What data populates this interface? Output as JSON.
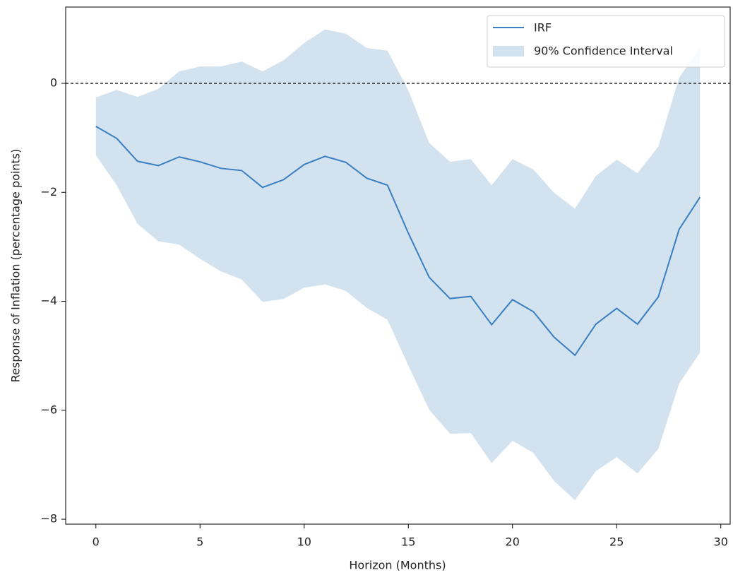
{
  "chart_data": {
    "type": "line",
    "xlabel": "Horizon (Months)",
    "ylabel": "Response of Inflation (percentage points)",
    "x": [
      0,
      1,
      2,
      3,
      4,
      5,
      6,
      7,
      8,
      9,
      10,
      11,
      12,
      13,
      14,
      15,
      16,
      17,
      18,
      19,
      20,
      21,
      22,
      23,
      24,
      25,
      26,
      27,
      28,
      29
    ],
    "series": [
      {
        "name": "IRF",
        "color": "#3a7fc1",
        "values": [
          -0.79,
          -1.01,
          -1.43,
          -1.51,
          -1.35,
          -1.44,
          -1.56,
          -1.6,
          -1.91,
          -1.77,
          -1.49,
          -1.34,
          -1.45,
          -1.74,
          -1.87,
          -2.75,
          -3.56,
          -3.95,
          -3.91,
          -4.43,
          -3.97,
          -4.19,
          -4.66,
          -4.99,
          -4.42,
          -4.13,
          -4.42,
          -3.92,
          -2.68,
          -2.09
        ]
      }
    ],
    "band": {
      "name": "90% Confidence Interval",
      "color": "#d2e2ef",
      "upper": [
        -0.26,
        -0.12,
        -0.25,
        -0.1,
        0.22,
        0.31,
        0.31,
        0.4,
        0.22,
        0.42,
        0.74,
        0.99,
        0.91,
        0.65,
        0.6,
        -0.13,
        -1.09,
        -1.44,
        -1.39,
        -1.87,
        -1.39,
        -1.58,
        -2.01,
        -2.3,
        -1.7,
        -1.4,
        -1.65,
        -1.16,
        0.1,
        0.66
      ],
      "lower": [
        -1.32,
        -1.87,
        -2.58,
        -2.9,
        -2.96,
        -3.22,
        -3.45,
        -3.6,
        -4.01,
        -3.96,
        -3.75,
        -3.69,
        -3.81,
        -4.12,
        -4.34,
        -5.18,
        -5.99,
        -6.43,
        -6.42,
        -6.97,
        -6.56,
        -6.78,
        -7.3,
        -7.65,
        -7.12,
        -6.86,
        -7.16,
        -6.71,
        -5.51,
        -4.94
      ]
    },
    "hline": 0,
    "xlim": [
      -1.45,
      30.45
    ],
    "ylim": [
      -8.09,
      1.4
    ],
    "xticks": [
      0,
      5,
      10,
      15,
      20,
      25,
      30
    ],
    "yticks": [
      {
        "value": -8,
        "label": "−8"
      },
      {
        "value": -6,
        "label": "−6"
      },
      {
        "value": -4,
        "label": "−4"
      },
      {
        "value": -2,
        "label": "−2"
      },
      0
    ],
    "legend": "upper right"
  }
}
